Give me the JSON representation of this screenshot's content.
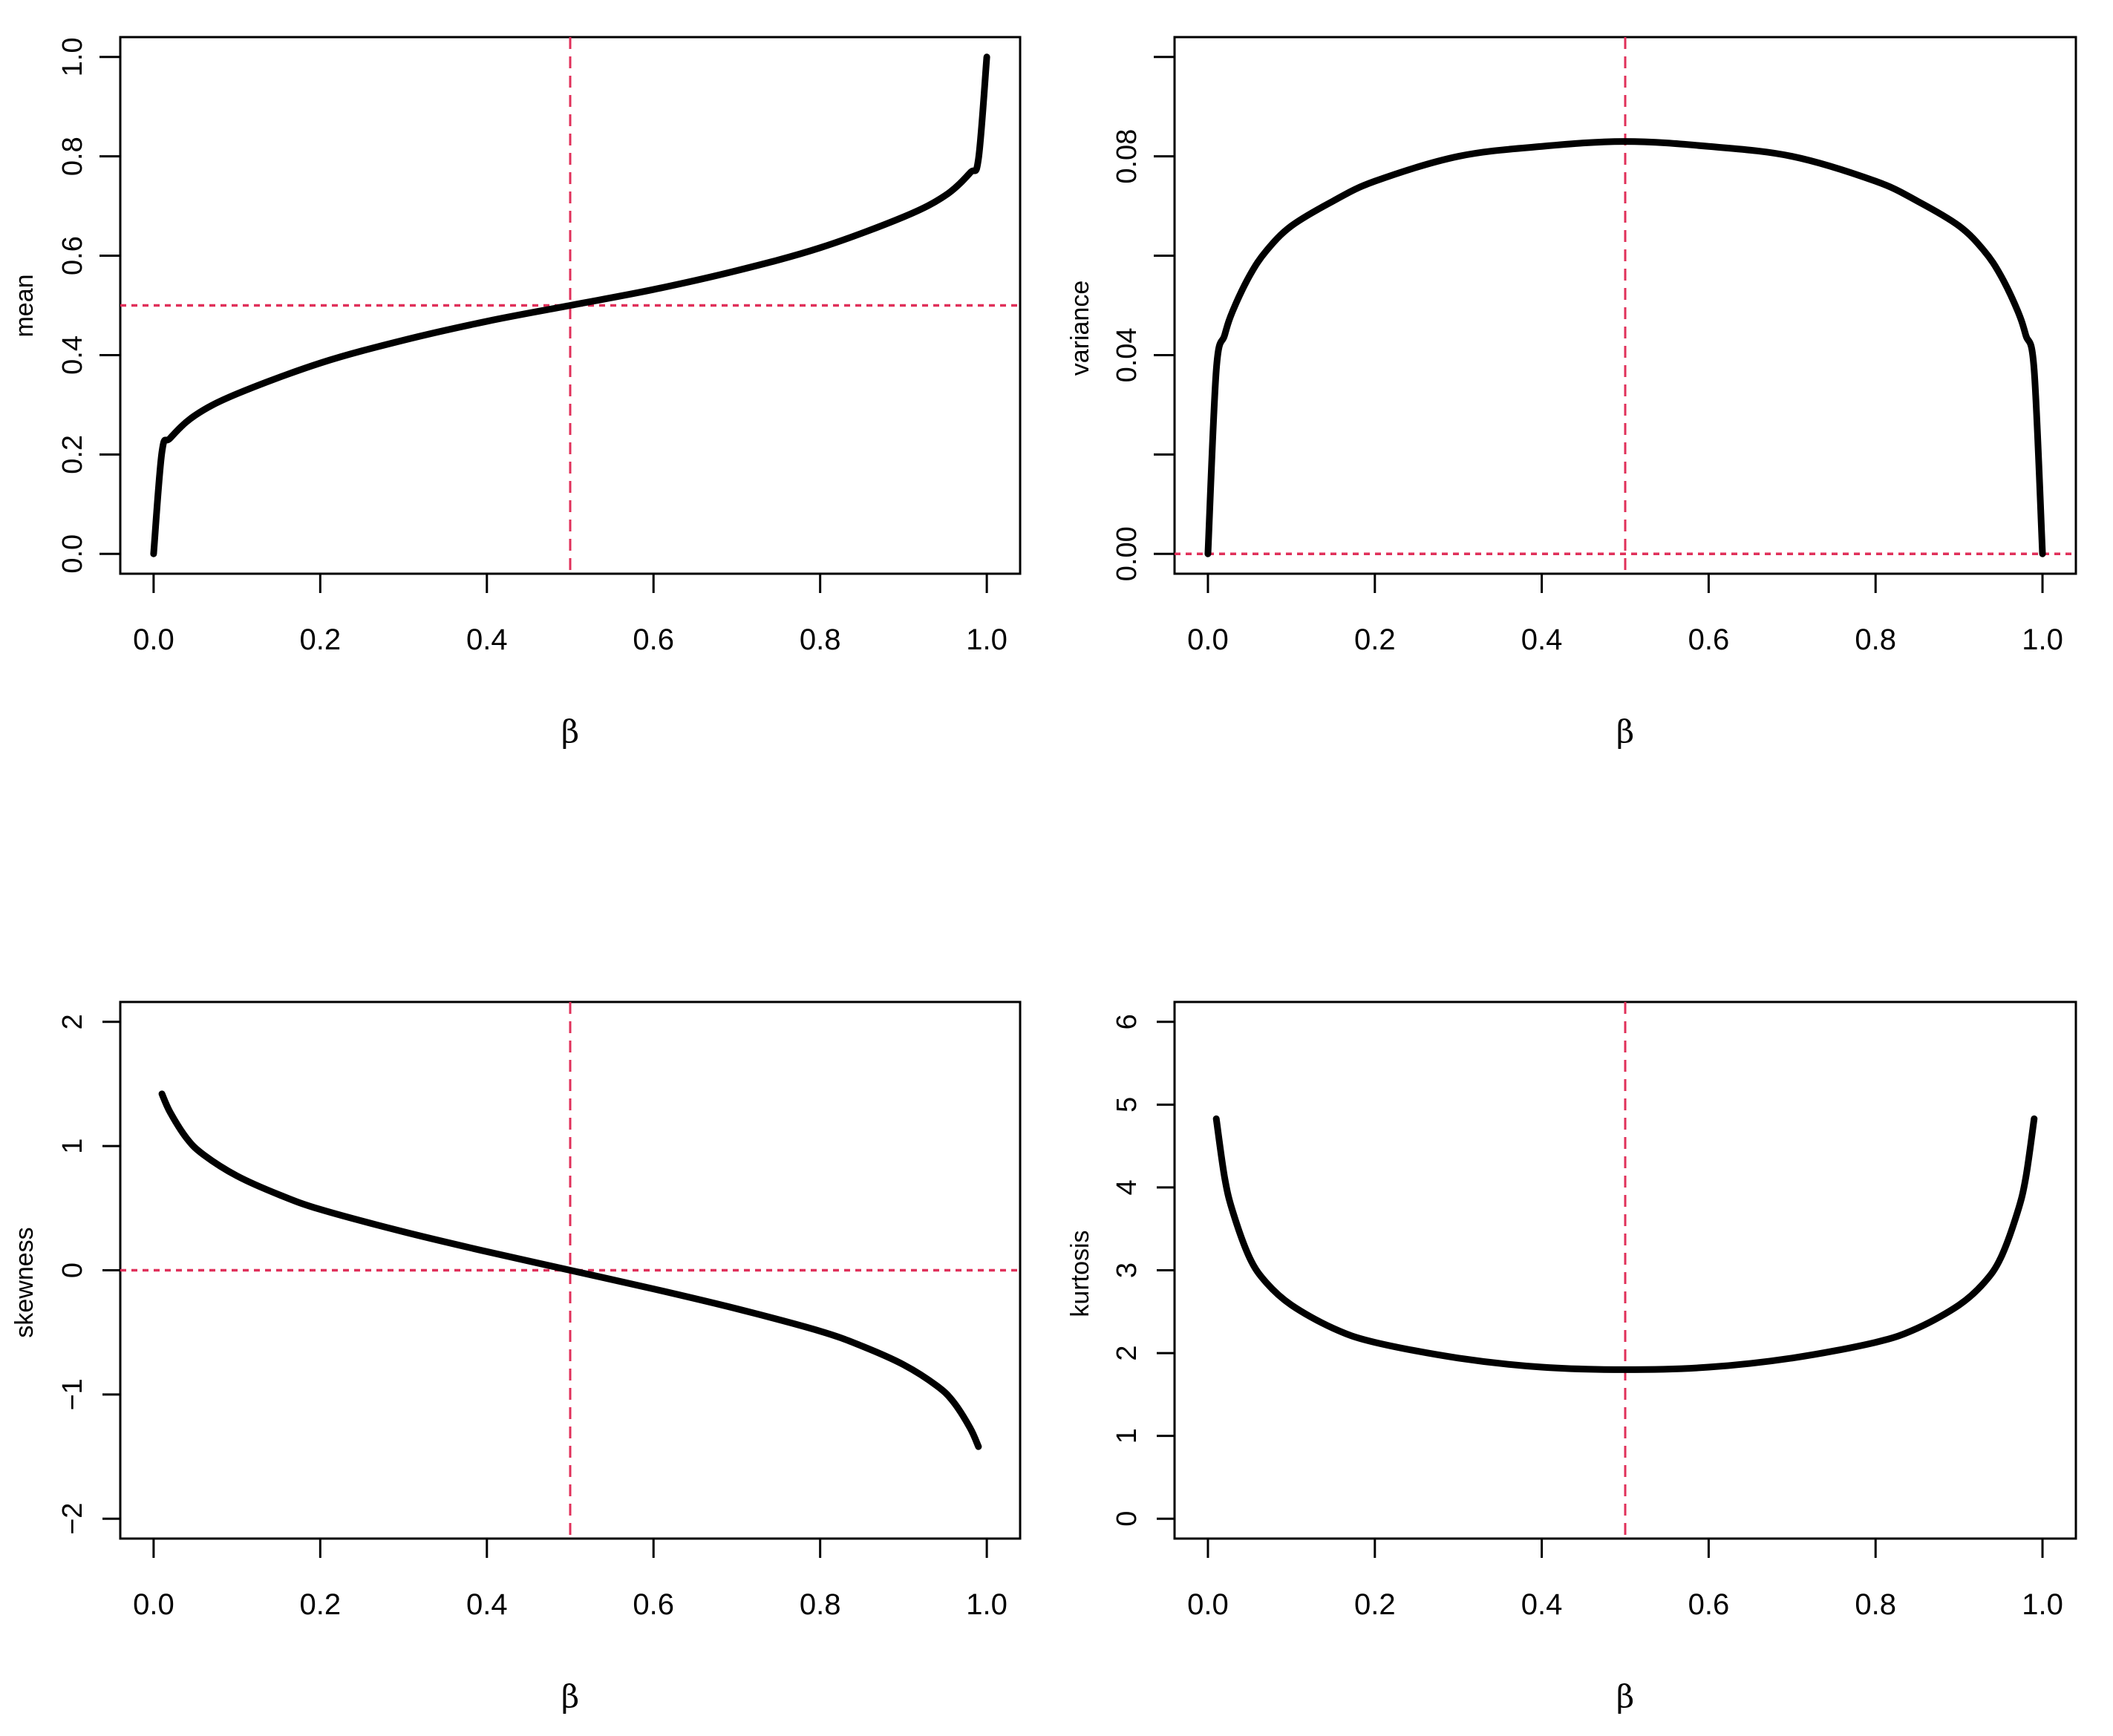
{
  "chart_data": [
    {
      "type": "line",
      "xlabel": "β",
      "ylabel": "mean",
      "xlim": [
        -0.04,
        1.04
      ],
      "ylim": [
        -0.04,
        1.04
      ],
      "x_ticks": [
        "0.0",
        "0.2",
        "0.4",
        "0.6",
        "0.8",
        "1.0"
      ],
      "x_tick_values": [
        0,
        0.2,
        0.4,
        0.6,
        0.8,
        1.0
      ],
      "y_ticks": [
        "0.0",
        "0.2",
        "0.4",
        "0.6",
        "0.8",
        "1.0"
      ],
      "y_tick_values": [
        0,
        0.2,
        0.4,
        0.6,
        0.8,
        1.0
      ],
      "reference_lines": {
        "vertical": 0.5,
        "horizontal": 0.5
      },
      "grid": false,
      "series": [
        {
          "x": [
            0,
            0.01,
            0.02,
            0.05,
            0.1,
            0.2,
            0.3,
            0.4,
            0.5,
            0.6,
            0.7,
            0.8,
            0.9,
            0.95,
            0.98,
            0.99,
            1.0
          ],
          "values": [
            0,
            0.205,
            0.233,
            0.279,
            0.322,
            0.384,
            0.43,
            0.468,
            0.5,
            0.532,
            0.57,
            0.616,
            0.678,
            0.721,
            0.767,
            0.795,
            1.0
          ]
        }
      ]
    },
    {
      "type": "line",
      "xlabel": "β",
      "ylabel": "variance",
      "xlim": [
        -0.04,
        1.04
      ],
      "ylim": [
        -0.004,
        0.104
      ],
      "x_ticks": [
        "0.0",
        "0.2",
        "0.4",
        "0.6",
        "0.8",
        "1.0"
      ],
      "x_tick_values": [
        0,
        0.2,
        0.4,
        0.6,
        0.8,
        1.0
      ],
      "y_ticks": [
        "0.00",
        "",
        "0.04",
        "",
        "0.08",
        ""
      ],
      "y_tick_values": [
        0,
        0.02,
        0.04,
        0.06,
        0.08,
        0.1
      ],
      "reference_lines": {
        "vertical": 0.5,
        "horizontal": 0
      },
      "grid": false,
      "series": [
        {
          "x": [
            0,
            0.01,
            0.02,
            0.03,
            0.05,
            0.07,
            0.1,
            0.15,
            0.2,
            0.3,
            0.4,
            0.5,
            0.6,
            0.7,
            0.8,
            0.85,
            0.9,
            0.93,
            0.95,
            0.97,
            0.98,
            0.99,
            1.0
          ],
          "values": [
            0,
            0.037,
            0.044,
            0.049,
            0.056,
            0.061,
            0.066,
            0.071,
            0.075,
            0.08,
            0.082,
            0.083,
            0.082,
            0.08,
            0.075,
            0.071,
            0.066,
            0.061,
            0.056,
            0.049,
            0.044,
            0.037,
            0
          ]
        }
      ]
    },
    {
      "type": "line",
      "xlabel": "β",
      "ylabel": "skewness",
      "xlim": [
        -0.04,
        1.04
      ],
      "ylim": [
        -2.16,
        2.16
      ],
      "x_ticks": [
        "0.0",
        "0.2",
        "0.4",
        "0.6",
        "0.8",
        "1.0"
      ],
      "x_tick_values": [
        0,
        0.2,
        0.4,
        0.6,
        0.8,
        1.0
      ],
      "y_ticks": [
        "−2",
        "−1",
        "0",
        "1",
        "2"
      ],
      "y_tick_values": [
        -2,
        -1,
        0,
        1,
        2
      ],
      "reference_lines": {
        "vertical": 0.5,
        "horizontal": 0
      },
      "grid": false,
      "series": [
        {
          "x": [
            0.01,
            0.02,
            0.04,
            0.06,
            0.1,
            0.15,
            0.2,
            0.3,
            0.4,
            0.5,
            0.6,
            0.7,
            0.8,
            0.85,
            0.9,
            0.94,
            0.96,
            0.98,
            0.99
          ],
          "values": [
            1.42,
            1.27,
            1.06,
            0.93,
            0.76,
            0.61,
            0.49,
            0.31,
            0.15,
            0,
            -0.15,
            -0.31,
            -0.49,
            -0.61,
            -0.76,
            -0.93,
            -1.06,
            -1.27,
            -1.42
          ]
        }
      ]
    },
    {
      "type": "line",
      "xlabel": "β",
      "ylabel": "kurtosis",
      "xlim": [
        -0.04,
        1.04
      ],
      "ylim": [
        -0.24,
        6.24
      ],
      "x_ticks": [
        "0.0",
        "0.2",
        "0.4",
        "0.6",
        "0.8",
        "1.0"
      ],
      "x_tick_values": [
        0,
        0.2,
        0.4,
        0.6,
        0.8,
        1.0
      ],
      "y_ticks": [
        "0",
        "1",
        "2",
        "3",
        "4",
        "5",
        "6"
      ],
      "y_tick_values": [
        0,
        1,
        2,
        3,
        4,
        5,
        6
      ],
      "reference_lines": {
        "vertical": 0.5
      },
      "grid": false,
      "series": [
        {
          "x": [
            0.01,
            0.02,
            0.03,
            0.05,
            0.07,
            0.1,
            0.15,
            0.2,
            0.3,
            0.4,
            0.5,
            0.6,
            0.7,
            0.8,
            0.85,
            0.9,
            0.93,
            0.95,
            0.97,
            0.98,
            0.99
          ],
          "values": [
            4.83,
            4.12,
            3.7,
            3.15,
            2.85,
            2.58,
            2.3,
            2.13,
            1.94,
            1.83,
            1.8,
            1.83,
            1.94,
            2.13,
            2.3,
            2.58,
            2.85,
            3.15,
            3.7,
            4.12,
            4.83
          ]
        }
      ]
    }
  ]
}
